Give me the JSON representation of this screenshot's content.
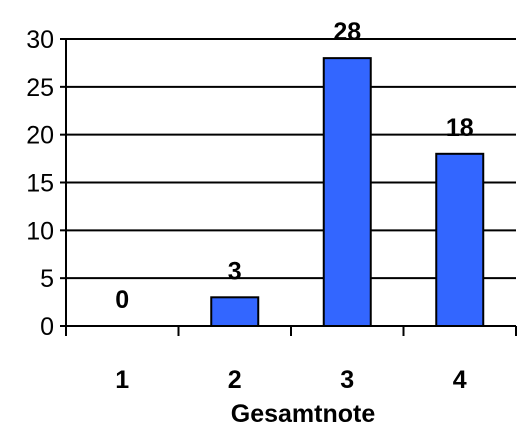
{
  "chart_data": {
    "type": "bar",
    "categories": [
      "1",
      "2",
      "3",
      "4"
    ],
    "values": [
      0,
      3,
      28,
      18
    ],
    "data_labels": [
      "0",
      "3",
      "28",
      "18"
    ],
    "xlabel": "Gesamtnote",
    "ylabel": "",
    "ylim": [
      0,
      30
    ],
    "yticks": [
      "0",
      "5",
      "10",
      "15",
      "20",
      "25",
      "30"
    ],
    "grid": true,
    "legend": "none",
    "bar_color": "#3366ff",
    "bar_edge_color": "#000000"
  }
}
